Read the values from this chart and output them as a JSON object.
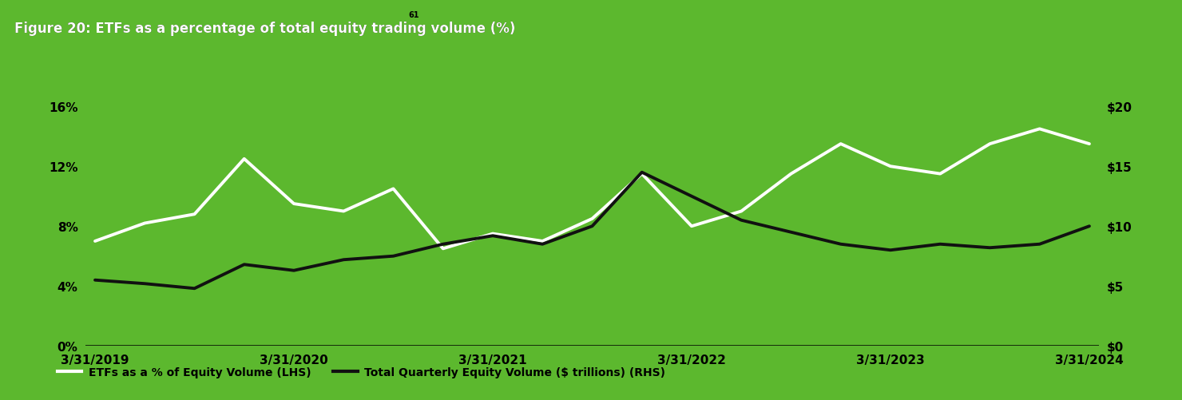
{
  "title_plain": "Figure 20: ETFs as a percentage of total equity trading volume (%)",
  "title_superscript": "61",
  "background_color": "#5cb82e",
  "header_bg_color": "#ffffff",
  "line1_color": "#ffffff",
  "line2_color": "#111111",
  "line1_label": "ETFs as a % of Equity Volume (LHS)",
  "line2_label": "Total Quarterly Equity Volume ($ trillions) (RHS)",
  "x_labels": [
    "3/31/2019",
    "3/31/2020",
    "3/31/2021",
    "3/31/2022",
    "3/31/2023",
    "3/31/2024"
  ],
  "x_tick_positions": [
    0,
    4,
    8,
    12,
    16,
    20
  ],
  "lhs_yticks": [
    0,
    4,
    8,
    12,
    16
  ],
  "rhs_yticks": [
    0,
    5,
    10,
    15,
    20
  ],
  "lhs_ylim": [
    0,
    20
  ],
  "rhs_ylim": [
    0,
    25
  ],
  "etf_pct": [
    7.0,
    8.2,
    8.8,
    12.5,
    9.5,
    9.0,
    10.5,
    6.5,
    7.5,
    7.0,
    8.5,
    11.5,
    8.0,
    9.0,
    11.5,
    13.5,
    12.0,
    11.5,
    13.5,
    14.5,
    13.5
  ],
  "total_vol": [
    5.5,
    5.2,
    4.8,
    6.8,
    6.3,
    7.2,
    7.5,
    8.5,
    9.2,
    8.5,
    10.0,
    14.5,
    12.5,
    10.5,
    9.5,
    8.5,
    8.0,
    8.5,
    8.2,
    8.5,
    10.0
  ],
  "figsize": [
    14.8,
    5.02
  ],
  "dpi": 100,
  "line_width": 2.8,
  "title_fontsize": 12,
  "tick_fontsize": 11,
  "legend_fontsize": 10
}
